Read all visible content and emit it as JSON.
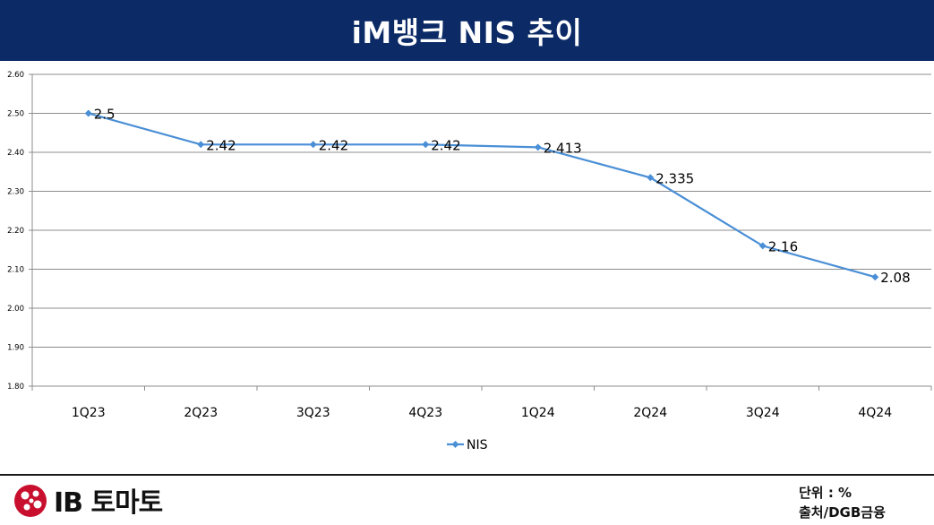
{
  "header": {
    "title": "iM뱅크 NIS 추이"
  },
  "chart_data": {
    "type": "line",
    "categories": [
      "1Q23",
      "2Q23",
      "3Q23",
      "4Q23",
      "1Q24",
      "2Q24",
      "3Q24",
      "4Q24"
    ],
    "series": [
      {
        "name": "NIS",
        "values": [
          2.5,
          2.42,
          2.42,
          2.42,
          2.413,
          2.335,
          2.16,
          2.08
        ],
        "labels": [
          "2.5",
          "2.42",
          "2.42",
          "2.42",
          "2.413",
          "2.335",
          "2.16",
          "2.08"
        ]
      }
    ],
    "yticks": [
      "1.80",
      "1.90",
      "2.00",
      "2.10",
      "2.20",
      "2.30",
      "2.40",
      "2.50",
      "2.60"
    ],
    "ylim": [
      1.8,
      2.6
    ],
    "grid": true,
    "legend": "bottom-center",
    "colors": {
      "series": "#4a8fd6",
      "grid": "#8c8c8c",
      "axis": "#8c8c8c"
    }
  },
  "footer": {
    "logo_text": "IB 토마토",
    "unit": "단위 : %",
    "source": "출처/DGB금융"
  }
}
